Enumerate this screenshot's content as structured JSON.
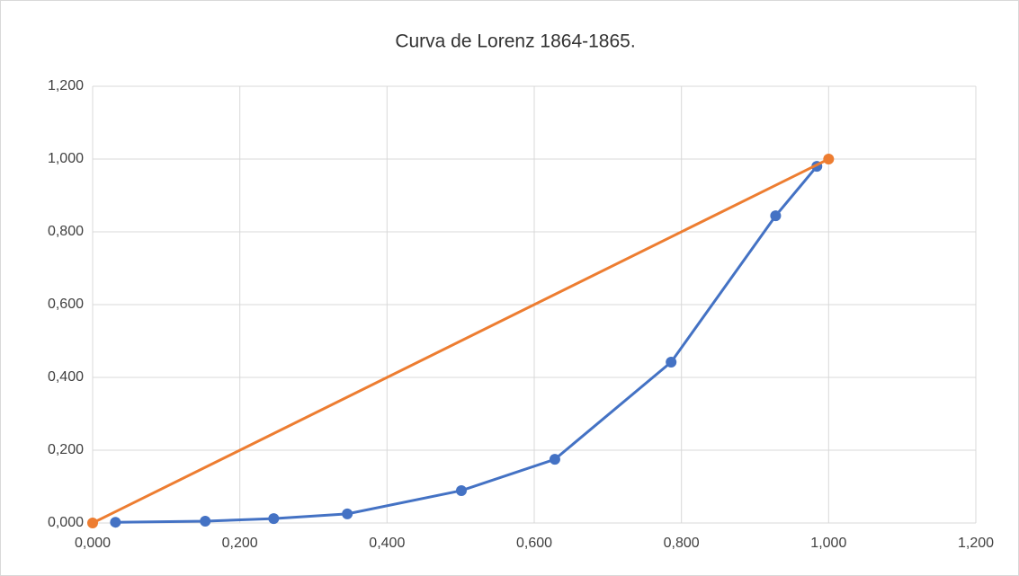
{
  "chart_data": {
    "type": "scatter",
    "title": "Curva de Lorenz 1864-1865.",
    "series": [
      {
        "color": "#4472c4",
        "x": [
          0.031,
          0.153,
          0.246,
          0.346,
          0.501,
          0.628,
          0.786,
          0.928,
          0.984
        ],
        "values": [
          0.002,
          0.005,
          0.012,
          0.025,
          0.089,
          0.175,
          0.442,
          0.844,
          0.98
        ]
      },
      {
        "color": "#ed7d31",
        "x": [
          0,
          1
        ],
        "values": [
          0,
          1
        ]
      }
    ],
    "xlim": [
      0,
      1.2
    ],
    "ylim": [
      0,
      1.2
    ],
    "xticks": [
      {
        "value": 0,
        "label": "0,000"
      },
      {
        "value": 0.2,
        "label": "0,200"
      },
      {
        "value": 0.4,
        "label": "0,400"
      },
      {
        "value": 0.6,
        "label": "0,600"
      },
      {
        "value": 0.8,
        "label": "0,800"
      },
      {
        "value": 1,
        "label": "1,000"
      },
      {
        "value": 1.2,
        "label": "1,200"
      }
    ],
    "yticks": [
      {
        "value": 0,
        "label": "0,000"
      },
      {
        "value": 0.2,
        "label": "0,200"
      },
      {
        "value": 0.4,
        "label": "0,400"
      },
      {
        "value": 0.6,
        "label": "0,600"
      },
      {
        "value": 0.8,
        "label": "0,800"
      },
      {
        "value": 1,
        "label": "1,000"
      },
      {
        "value": 1.2,
        "label": "1,200"
      }
    ],
    "grid": true
  }
}
